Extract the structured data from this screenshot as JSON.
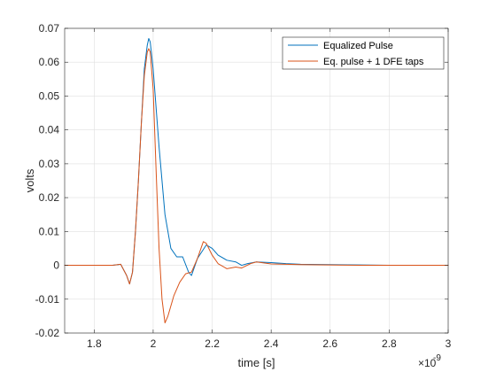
{
  "chart_data": {
    "type": "line",
    "title": "",
    "xlabel": "time [s]",
    "ylabel": "volts",
    "x_exponent_label": "×10",
    "x_exponent_power": "-9",
    "xlim": [
      1.7,
      3.0
    ],
    "ylim": [
      -0.02,
      0.07
    ],
    "grid": true,
    "legend_position": "top-right",
    "x_ticks": [
      1.8,
      2.0,
      2.2,
      2.4,
      2.6,
      2.8,
      3.0
    ],
    "x_tick_labels": [
      "1.8",
      "2",
      "2.2",
      "2.4",
      "2.6",
      "2.8",
      "3"
    ],
    "y_ticks": [
      -0.02,
      -0.01,
      0,
      0.01,
      0.02,
      0.03,
      0.04,
      0.05,
      0.06,
      0.07
    ],
    "y_tick_labels": [
      "-0.02",
      "-0.01",
      "0",
      "0.01",
      "0.02",
      "0.03",
      "0.04",
      "0.05",
      "0.06",
      "0.07"
    ],
    "series": [
      {
        "name": "Equalized Pulse",
        "color": "#0072BD",
        "x": [
          1.7,
          1.8,
          1.86,
          1.89,
          1.91,
          1.92,
          1.93,
          1.94,
          1.95,
          1.96,
          1.97,
          1.98,
          1.985,
          1.99,
          2.0,
          2.02,
          2.04,
          2.06,
          2.08,
          2.1,
          2.12,
          2.13,
          2.15,
          2.18,
          2.2,
          2.22,
          2.25,
          2.28,
          2.3,
          2.32,
          2.35,
          2.4,
          2.45,
          2.5,
          2.6,
          2.7,
          2.8,
          2.9,
          3.0
        ],
        "y": [
          0,
          0,
          0,
          0.0003,
          -0.003,
          -0.0055,
          -0.002,
          0.01,
          0.025,
          0.042,
          0.058,
          0.065,
          0.067,
          0.066,
          0.058,
          0.035,
          0.015,
          0.005,
          0.0025,
          0.0025,
          -0.002,
          -0.003,
          0.002,
          0.006,
          0.005,
          0.003,
          0.0015,
          0.001,
          0,
          0.0005,
          0.001,
          0.0008,
          0.0005,
          0.0003,
          0.0002,
          0.0001,
          0,
          0,
          0
        ]
      },
      {
        "name": "Eq. pulse + 1 DFE taps",
        "color": "#D95319",
        "x": [
          1.7,
          1.8,
          1.86,
          1.89,
          1.91,
          1.92,
          1.93,
          1.94,
          1.95,
          1.96,
          1.97,
          1.98,
          1.985,
          1.99,
          2.0,
          2.01,
          2.02,
          2.03,
          2.04,
          2.05,
          2.07,
          2.09,
          2.11,
          2.13,
          2.15,
          2.17,
          2.18,
          2.2,
          2.22,
          2.25,
          2.28,
          2.3,
          2.33,
          2.35,
          2.4,
          2.5,
          2.6,
          2.7,
          2.8,
          3.0
        ],
        "y": [
          0,
          0,
          0,
          0.0003,
          -0.003,
          -0.0055,
          -0.002,
          0.01,
          0.025,
          0.042,
          0.056,
          0.063,
          0.064,
          0.063,
          0.052,
          0.028,
          0.005,
          -0.01,
          -0.017,
          -0.015,
          -0.009,
          -0.005,
          -0.0025,
          -0.002,
          0.002,
          0.007,
          0.0065,
          0.003,
          0.0005,
          -0.001,
          -0.0005,
          -0.0008,
          0.0005,
          0.001,
          0.0004,
          0.0002,
          0.0001,
          0,
          0,
          0
        ]
      }
    ]
  }
}
